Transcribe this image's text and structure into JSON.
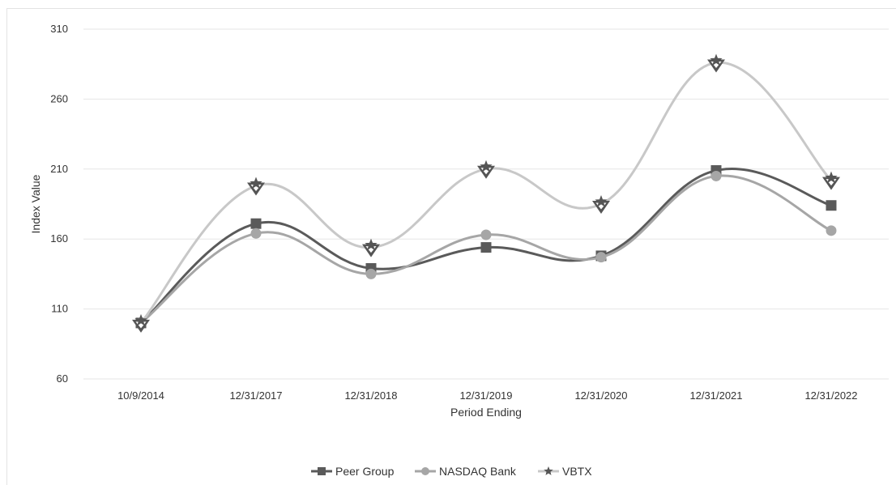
{
  "chart_data": {
    "type": "line",
    "title": "",
    "xlabel": "Period Ending",
    "ylabel": "Index Value",
    "categories": [
      "10/9/2014",
      "12/31/2017",
      "12/31/2018",
      "12/31/2019",
      "12/31/2020",
      "12/31/2021",
      "12/31/2022"
    ],
    "ylim": [
      60,
      310
    ],
    "yticks": [
      60,
      110,
      160,
      210,
      260,
      310
    ],
    "grid": true,
    "smooth": true,
    "legend_position": "bottom",
    "series": [
      {
        "name": "Peer Group",
        "values": [
          100,
          171,
          139,
          154,
          148,
          209,
          184
        ],
        "color": "#5a5a5a",
        "marker": "square"
      },
      {
        "name": "NASDAQ Bank",
        "values": [
          100,
          164,
          135,
          163,
          147,
          205,
          166
        ],
        "color": "#a6a6a6",
        "marker": "circle"
      },
      {
        "name": "VBTX",
        "values": [
          100,
          198,
          154,
          210,
          185,
          286,
          202
        ],
        "color": "#c8c8c8",
        "marker": "star-triangle",
        "marker_color": "#555555"
      }
    ]
  }
}
